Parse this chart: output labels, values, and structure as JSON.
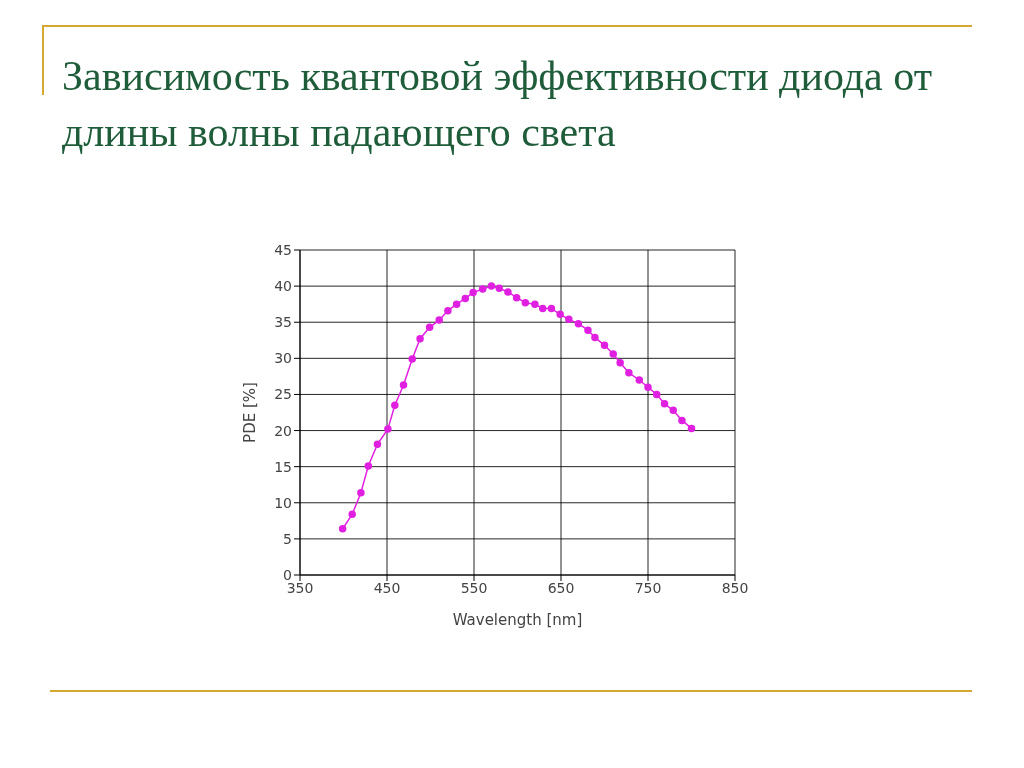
{
  "chart_data": {
    "type": "line",
    "title": "Зависимость квантовой эффективности диода от длины волны падающего света",
    "xlabel": "Wavelength [nm]",
    "ylabel": "PDE [%]",
    "x": [
      399,
      410,
      420,
      428.5,
      439,
      451,
      459,
      469,
      479,
      488,
      499,
      510,
      520,
      530,
      540,
      549,
      560,
      570,
      579,
      589,
      599,
      609,
      620,
      629,
      639,
      649,
      659,
      670,
      681,
      689,
      700,
      710,
      718,
      728,
      740,
      750,
      760,
      769,
      779,
      789,
      800
    ],
    "series": [
      {
        "color": "#e020e0",
        "values": [
          6.4,
          8.4,
          11.4,
          15.1,
          18.1,
          20.2,
          23.5,
          26.3,
          29.9,
          32.7,
          34.3,
          35.3,
          36.6,
          37.5,
          38.3,
          39.1,
          39.6,
          40.0,
          39.7,
          39.2,
          38.4,
          37.7,
          37.5,
          36.9,
          36.9,
          36.1,
          35.4,
          34.8,
          33.9,
          32.9,
          31.8,
          30.6,
          29.4,
          28.0,
          27.0,
          26.0,
          25.0,
          23.7,
          22.8,
          21.4,
          20.3
        ]
      }
    ],
    "xlim": [
      350,
      850
    ],
    "xticks": [
      350,
      450,
      550,
      650,
      750,
      850
    ],
    "ylim": [
      0,
      45
    ],
    "yticks": [
      0,
      5,
      10,
      15,
      20,
      25,
      30,
      35,
      40,
      45
    ],
    "grid": true,
    "marker": "circle",
    "line_style": "solid",
    "legend": false
  }
}
